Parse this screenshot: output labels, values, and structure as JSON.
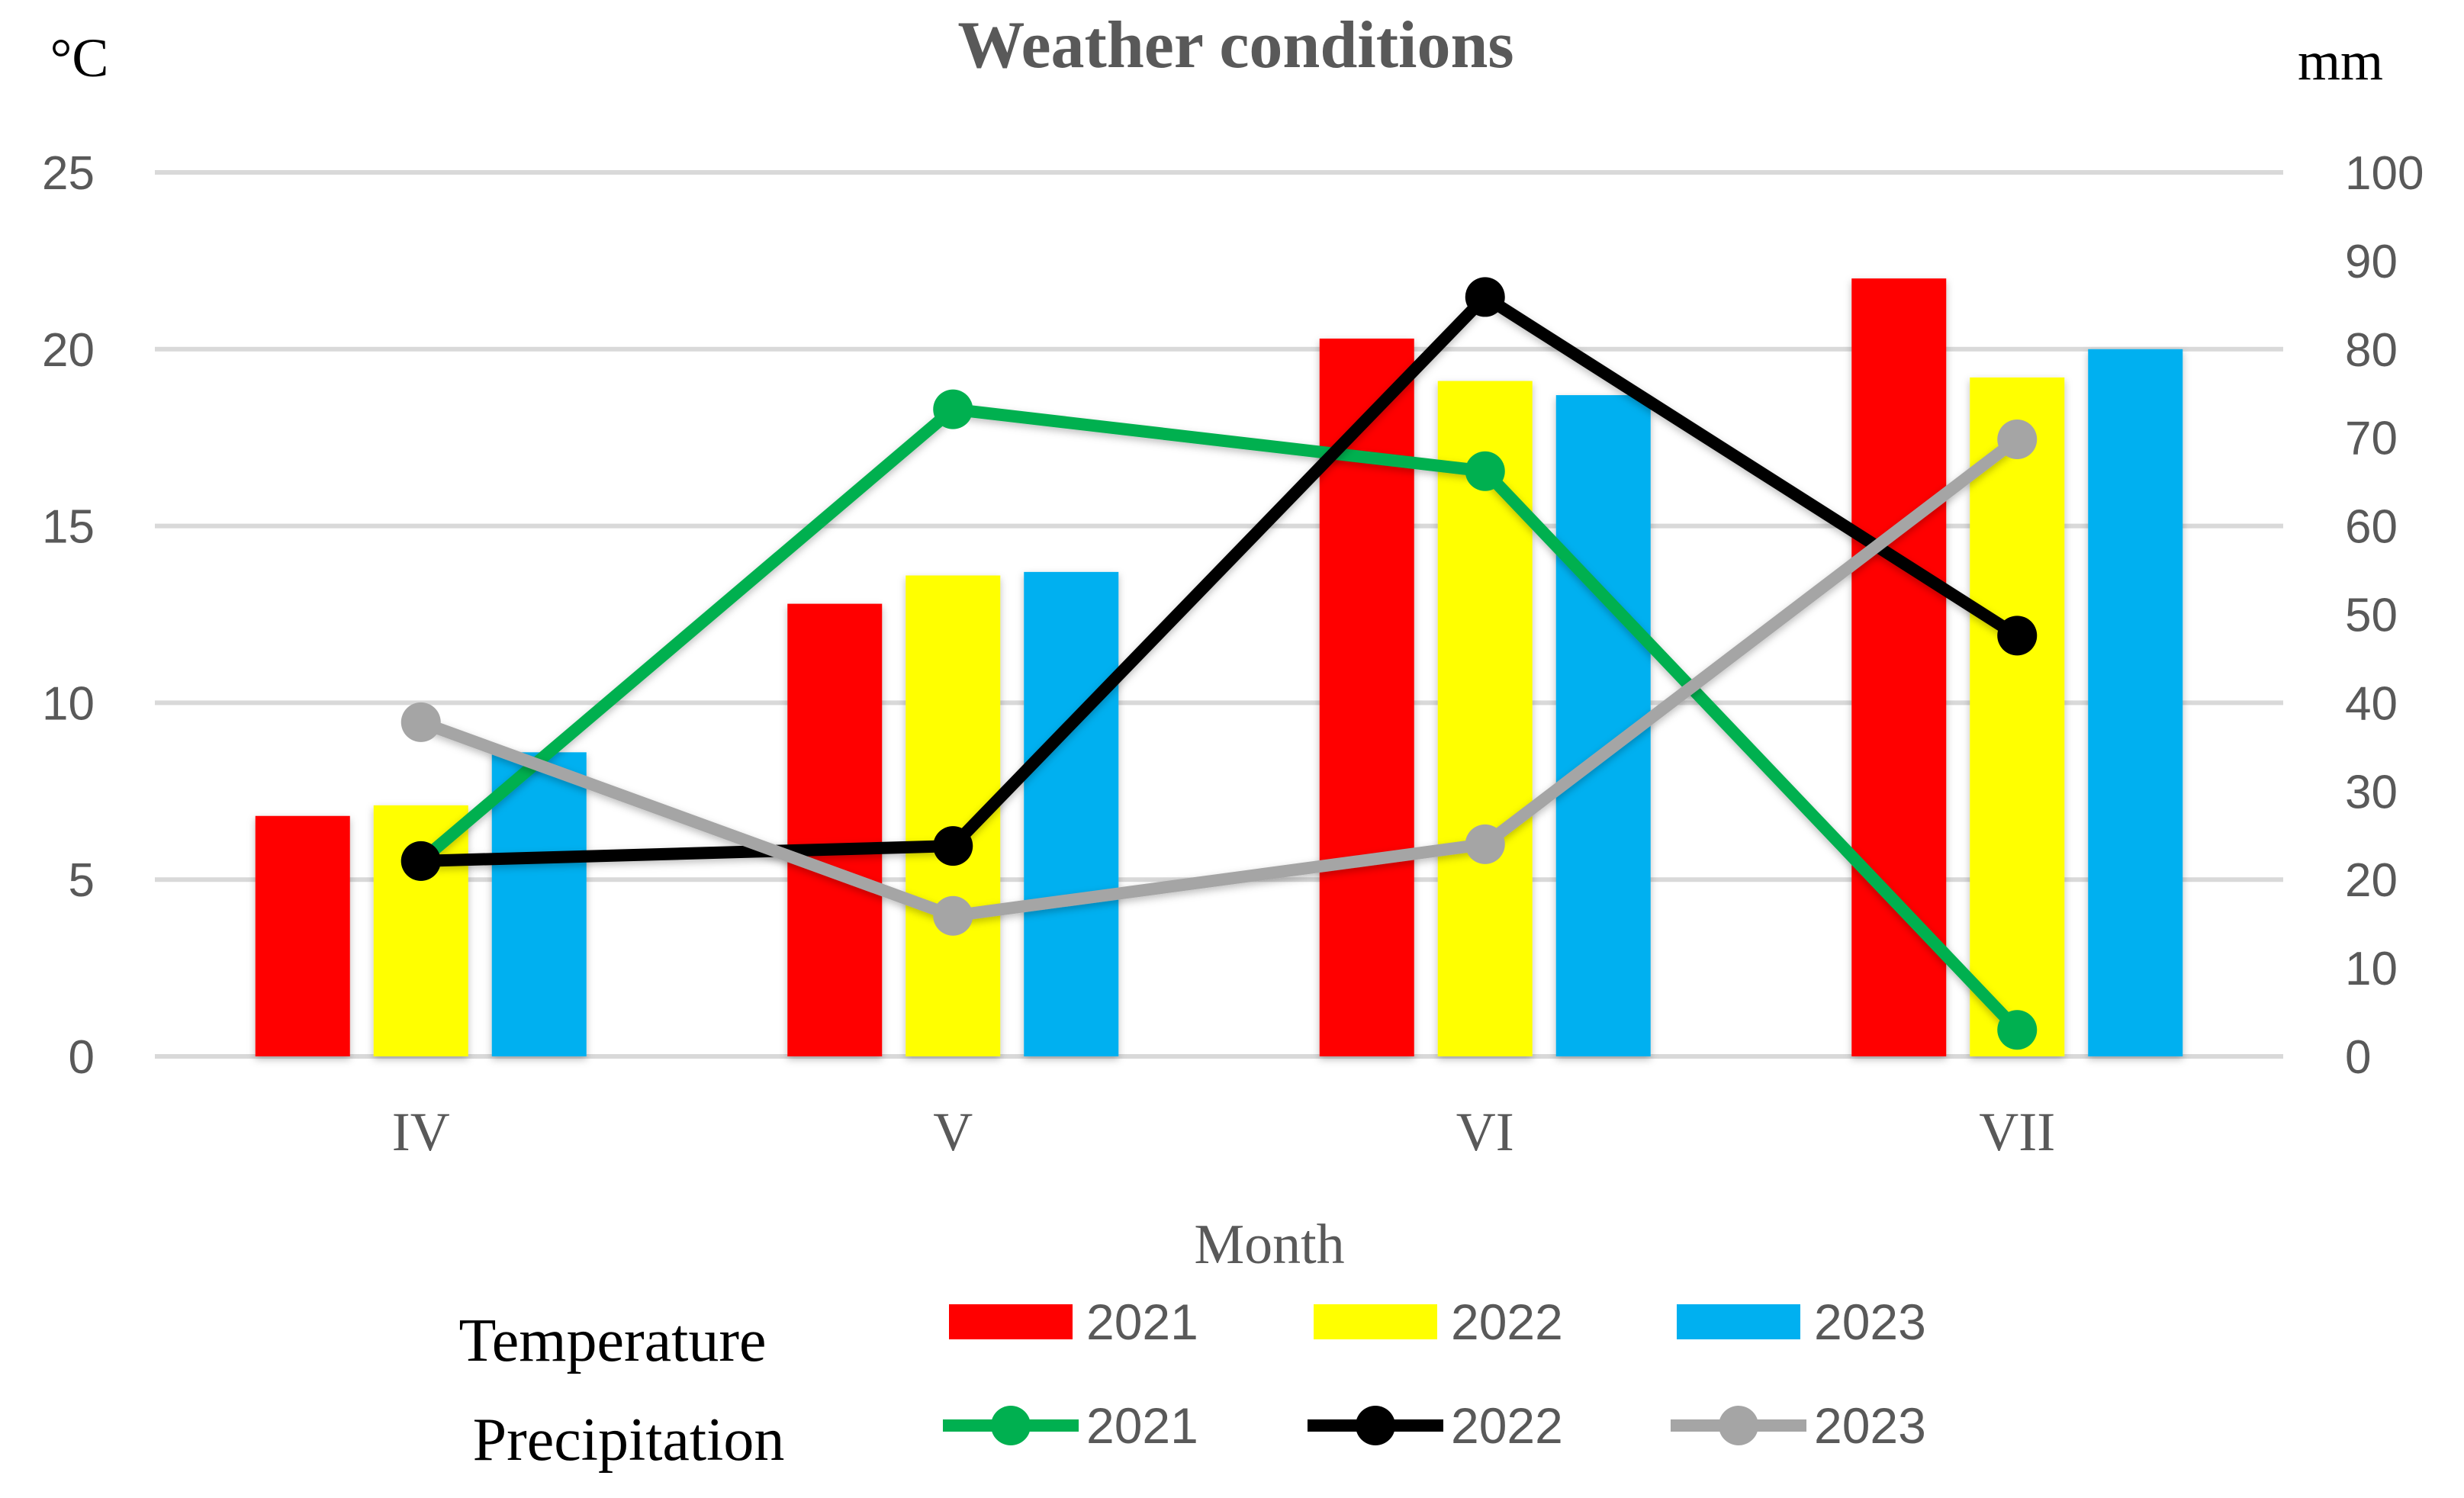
{
  "chart_data": {
    "type": "bar+line",
    "title": "Weather conditions",
    "xlabel": "Month",
    "ylabel_left": "°C",
    "ylabel_right": "mm",
    "categories": [
      "IV",
      "V",
      "VI",
      "VII"
    ],
    "ylim_left": [
      0,
      25
    ],
    "yticks_left": [
      "0",
      "5",
      "10",
      "15",
      "20",
      "25"
    ],
    "ylim_right": [
      0,
      100
    ],
    "yticks_right": [
      "0",
      "10",
      "20",
      "30",
      "40",
      "50",
      "60",
      "70",
      "80",
      "90",
      "100"
    ],
    "grid": true,
    "legend_placement": "bottom",
    "legend_group_labels": {
      "temperature": "Temperature",
      "precipitation": "Precipitation"
    },
    "bar_series": [
      {
        "name": "2021",
        "color": "#FF0000",
        "values": [
          6.8,
          12.8,
          20.3,
          22.0
        ]
      },
      {
        "name": "2022",
        "color": "#FFFF00",
        "values": [
          7.1,
          13.6,
          19.1,
          19.2
        ]
      },
      {
        "name": "2023",
        "color": "#00B0F0",
        "values": [
          8.6,
          13.7,
          18.7,
          20.0
        ]
      }
    ],
    "line_series": [
      {
        "name": "2021",
        "color": "#00B050",
        "values": [
          22.1,
          73.2,
          66.2,
          3.0
        ]
      },
      {
        "name": "2022",
        "color": "#000000",
        "values": [
          22.1,
          23.8,
          85.9,
          47.6
        ]
      },
      {
        "name": "2023",
        "color": "#A5A5A5",
        "values": [
          37.8,
          15.9,
          24.0,
          69.8
        ]
      }
    ]
  }
}
